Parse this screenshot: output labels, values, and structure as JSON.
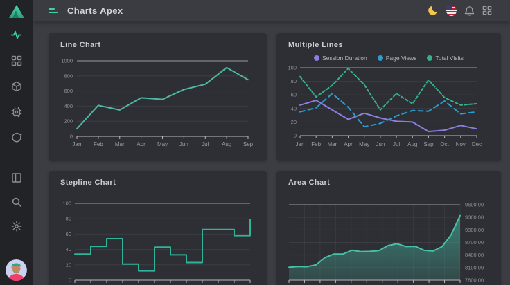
{
  "app": {
    "title": "Charts Apex"
  },
  "colors": {
    "accent": "#3ed0aa",
    "page_bg": "#3c3d43",
    "sidebar_bg": "#222327",
    "card_bg": "#2e2f35",
    "moon": "#f2c94c",
    "axis_label": "#8f9297"
  },
  "sidebar": {
    "logo_icon": "triangle-logo",
    "items": [
      {
        "icon": "activity-icon",
        "active": true
      },
      {
        "icon": "grid-icon",
        "active": false
      },
      {
        "icon": "box-icon",
        "active": false
      },
      {
        "icon": "cpu-icon",
        "active": false
      },
      {
        "icon": "chat-icon",
        "active": false
      }
    ],
    "footer_items": [
      {
        "icon": "panel-icon"
      },
      {
        "icon": "search-icon"
      },
      {
        "icon": "gear-icon"
      },
      {
        "icon": "avatar"
      }
    ]
  },
  "header": {
    "icons": [
      "moon-icon",
      "us-flag-icon",
      "bell-icon",
      "apps-grid-icon"
    ]
  },
  "chart_data": [
    {
      "type": "line",
      "title": "Line Chart",
      "categories": [
        "Jan",
        "Feb",
        "Mar",
        "Apr",
        "May",
        "Jun",
        "Jul",
        "Aug",
        "Sep"
      ],
      "values": [
        100,
        410,
        350,
        510,
        490,
        620,
        690,
        910,
        750
      ],
      "ylim": [
        0,
        1000
      ],
      "yticks": [
        0,
        200,
        400,
        600,
        800,
        1000
      ],
      "color": "#4fb8a3",
      "legend_position": "none",
      "grid": "horizontal"
    },
    {
      "type": "line",
      "title": "Multiple Lines",
      "categories": [
        "Jan",
        "Feb",
        "Mar",
        "Apr",
        "May",
        "Jun",
        "Jul",
        "Aug",
        "Sep",
        "Oct",
        "Nov",
        "Dec"
      ],
      "series": [
        {
          "name": "Session Duration",
          "color": "#8b7fe0",
          "dash": 0,
          "values": [
            45,
            52,
            38,
            24,
            33,
            26,
            21,
            20,
            6,
            8,
            15,
            10
          ]
        },
        {
          "name": "Page Views",
          "color": "#2d9cd0",
          "dash": 7,
          "values": [
            35,
            41,
            62,
            42,
            13,
            18,
            29,
            37,
            36,
            51,
            32,
            35
          ]
        },
        {
          "name": "Total Visits",
          "color": "#35b28a",
          "dash": 4,
          "values": [
            87,
            57,
            74,
            99,
            75,
            38,
            62,
            47,
            82,
            56,
            45,
            47
          ]
        }
      ],
      "ylim": [
        0,
        100
      ],
      "yticks": [
        0,
        20,
        40,
        60,
        80,
        100
      ],
      "legend_position": "top",
      "grid": "horizontal"
    },
    {
      "type": "line",
      "curve": "stepline",
      "title": "Stepline Chart",
      "values": [
        34,
        44,
        54,
        21,
        12,
        43,
        33,
        23,
        66,
        66,
        58,
        79
      ],
      "ylim": [
        0,
        100
      ],
      "yticks": [
        0,
        20,
        40,
        60,
        80,
        100
      ],
      "color": "#2eb49b",
      "x_labels_visible": false,
      "legend_position": "none",
      "grid": "horizontal"
    },
    {
      "type": "area",
      "title": "Area Chart",
      "values": [
        8107.85,
        8128.0,
        8122.9,
        8165.5,
        8340.7,
        8423.7,
        8423.5,
        8514.3,
        8481.85,
        8487.7,
        8506.9,
        8626.2,
        8668.95,
        8602.3,
        8607.55,
        8512.9,
        8496.25,
        8600.65,
        8881.1,
        9340.85
      ],
      "ylim": [
        7800,
        9600
      ],
      "yticks": [
        {
          "value": 9600,
          "label": "9600.00"
        },
        {
          "value": 9300,
          "label": "9300.00"
        },
        {
          "value": 9000,
          "label": "9000.00"
        },
        {
          "value": 8700,
          "label": "8700.00"
        },
        {
          "value": 8400,
          "label": "8400.00"
        },
        {
          "value": 8100,
          "label": "8100.00"
        },
        {
          "value": 7800,
          "label": "7800.00"
        }
      ],
      "color": "#46c2a8",
      "y_axis_side": "right",
      "x_labels_visible": false,
      "legend_position": "none",
      "grid": "both"
    }
  ]
}
